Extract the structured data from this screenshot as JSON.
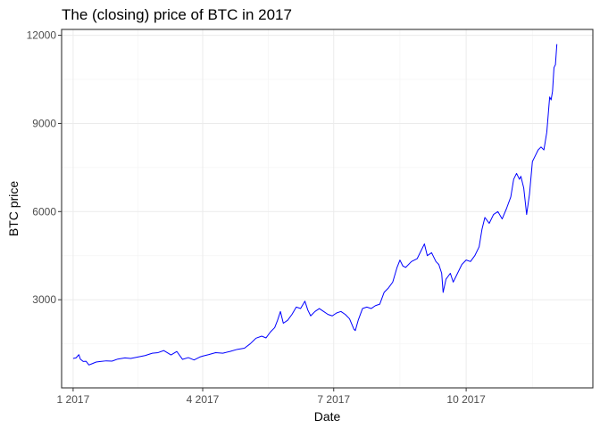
{
  "chart_data": {
    "type": "line",
    "title": "The (closing) price of BTC in 2017",
    "xlabel": "Date",
    "ylabel": "BTC price",
    "xlim": [
      "2016-12-24",
      "2017-12-28"
    ],
    "ylim": [
      0,
      12200
    ],
    "x_ticks": [
      {
        "date": "2017-01-01",
        "label": "1 2017"
      },
      {
        "date": "2017-04-01",
        "label": "4 2017"
      },
      {
        "date": "2017-07-01",
        "label": "7 2017"
      },
      {
        "date": "2017-10-01",
        "label": "10 2017"
      }
    ],
    "y_ticks": [
      {
        "value": 3000,
        "label": "3000"
      },
      {
        "value": 6000,
        "label": "6000"
      },
      {
        "value": 9000,
        "label": "9000"
      },
      {
        "value": 12000,
        "label": "12000"
      }
    ],
    "grid": true,
    "legend": "none",
    "line_color": "#0000ff",
    "series": [
      {
        "x": [
          "2017-01-01",
          "2017-01-03",
          "2017-01-05",
          "2017-01-06",
          "2017-01-08",
          "2017-01-10",
          "2017-01-12",
          "2017-01-14",
          "2017-01-17",
          "2017-01-20",
          "2017-01-24",
          "2017-01-28",
          "2017-02-01",
          "2017-02-06",
          "2017-02-10",
          "2017-02-15",
          "2017-02-20",
          "2017-02-25",
          "2017-03-01",
          "2017-03-05",
          "2017-03-10",
          "2017-03-14",
          "2017-03-18",
          "2017-03-22",
          "2017-03-26",
          "2017-03-30",
          "2017-04-01",
          "2017-04-05",
          "2017-04-10",
          "2017-04-15",
          "2017-04-20",
          "2017-04-25",
          "2017-04-30",
          "2017-05-04",
          "2017-05-08",
          "2017-05-12",
          "2017-05-15",
          "2017-05-18",
          "2017-05-21",
          "2017-05-23",
          "2017-05-25",
          "2017-05-27",
          "2017-05-30",
          "2017-06-02",
          "2017-06-05",
          "2017-06-08",
          "2017-06-11",
          "2017-06-13",
          "2017-06-15",
          "2017-06-18",
          "2017-06-21",
          "2017-06-24",
          "2017-06-27",
          "2017-06-30",
          "2017-07-03",
          "2017-07-06",
          "2017-07-09",
          "2017-07-12",
          "2017-07-15",
          "2017-07-16",
          "2017-07-18",
          "2017-07-21",
          "2017-07-24",
          "2017-07-27",
          "2017-07-30",
          "2017-08-02",
          "2017-08-05",
          "2017-08-08",
          "2017-08-11",
          "2017-08-14",
          "2017-08-16",
          "2017-08-18",
          "2017-08-20",
          "2017-08-24",
          "2017-08-28",
          "2017-08-31",
          "2017-09-02",
          "2017-09-04",
          "2017-09-07",
          "2017-09-10",
          "2017-09-12",
          "2017-09-14",
          "2017-09-15",
          "2017-09-17",
          "2017-09-20",
          "2017-09-22",
          "2017-09-25",
          "2017-09-28",
          "2017-10-01",
          "2017-10-04",
          "2017-10-07",
          "2017-10-10",
          "2017-10-12",
          "2017-10-14",
          "2017-10-17",
          "2017-10-20",
          "2017-10-23",
          "2017-10-26",
          "2017-10-29",
          "2017-11-01",
          "2017-11-03",
          "2017-11-05",
          "2017-11-07",
          "2017-11-08",
          "2017-11-10",
          "2017-11-12",
          "2017-11-14",
          "2017-11-16",
          "2017-11-18",
          "2017-11-20",
          "2017-11-22",
          "2017-11-24",
          "2017-11-26",
          "2017-11-28",
          "2017-11-29",
          "2017-11-30",
          "2017-12-01",
          "2017-12-02",
          "2017-12-03"
        ],
        "y": [
          1000,
          1020,
          1130,
          980,
          900,
          905,
          780,
          820,
          880,
          900,
          920,
          910,
          980,
          1020,
          1000,
          1050,
          1100,
          1180,
          1200,
          1270,
          1120,
          1240,
          970,
          1030,
          950,
          1050,
          1080,
          1130,
          1200,
          1180,
          1240,
          1310,
          1350,
          1500,
          1690,
          1760,
          1700,
          1900,
          2050,
          2300,
          2600,
          2200,
          2300,
          2500,
          2750,
          2700,
          2950,
          2650,
          2450,
          2600,
          2700,
          2600,
          2500,
          2450,
          2550,
          2600,
          2500,
          2350,
          2000,
          1950,
          2300,
          2700,
          2750,
          2700,
          2800,
          2850,
          3250,
          3400,
          3600,
          4100,
          4350,
          4150,
          4100,
          4300,
          4400,
          4700,
          4900,
          4500,
          4600,
          4300,
          4200,
          3900,
          3250,
          3700,
          3900,
          3600,
          3900,
          4200,
          4350,
          4300,
          4500,
          4800,
          5400,
          5800,
          5600,
          5900,
          6000,
          5750,
          6100,
          6500,
          7100,
          7300,
          7100,
          7200,
          6800,
          5900,
          6600,
          7700,
          7900,
          8100,
          8200,
          8100,
          8700,
          9900,
          9800,
          10100,
          10900,
          11000,
          11700
        ]
      }
    ]
  }
}
